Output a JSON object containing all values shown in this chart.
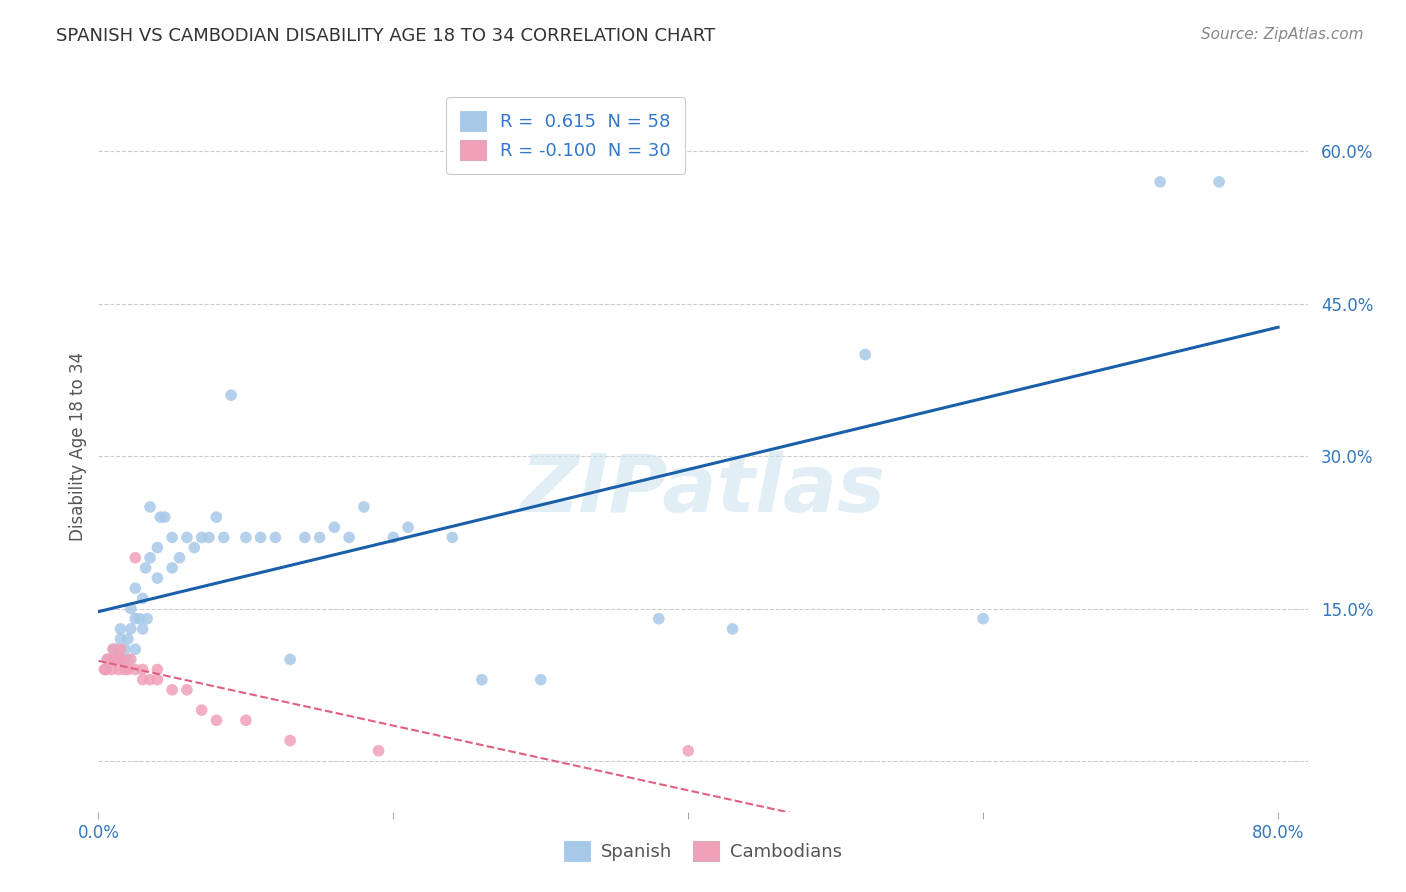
{
  "title": "SPANISH VS CAMBODIAN DISABILITY AGE 18 TO 34 CORRELATION CHART",
  "source": "Source: ZipAtlas.com",
  "ylabel": "Disability Age 18 to 34",
  "xlim": [
    0.0,
    0.82
  ],
  "ylim": [
    -0.05,
    0.67
  ],
  "xtick_positions": [
    0.0,
    0.2,
    0.4,
    0.6,
    0.8
  ],
  "xtick_labels": [
    "0.0%",
    "",
    "",
    "",
    "80.0%"
  ],
  "ytick_values": [
    0.0,
    0.15,
    0.3,
    0.45,
    0.6
  ],
  "ytick_labels": [
    "",
    "15.0%",
    "30.0%",
    "45.0%",
    "60.0%"
  ],
  "grid_color": "#cccccc",
  "background_color": "#ffffff",
  "spanish_color": "#a8c8e8",
  "cambodian_color": "#f0a0b8",
  "spanish_line_color": "#1a5faa",
  "cambodian_line_color": "#e06080",
  "R_spanish": 0.615,
  "N_spanish": 58,
  "R_cambodian": -0.1,
  "N_cambodian": 30,
  "watermark": "ZIPatlas",
  "spanish_x": [
    0.005,
    0.006,
    0.008,
    0.01,
    0.01,
    0.012,
    0.015,
    0.015,
    0.015,
    0.018,
    0.02,
    0.02,
    0.022,
    0.022,
    0.025,
    0.025,
    0.025,
    0.028,
    0.03,
    0.03,
    0.032,
    0.033,
    0.035,
    0.035,
    0.04,
    0.04,
    0.042,
    0.045,
    0.05,
    0.05,
    0.055,
    0.06,
    0.065,
    0.07,
    0.075,
    0.08,
    0.085,
    0.09,
    0.1,
    0.11,
    0.12,
    0.13,
    0.14,
    0.15,
    0.16,
    0.17,
    0.18,
    0.2,
    0.21,
    0.24,
    0.26,
    0.3,
    0.38,
    0.43,
    0.52,
    0.6,
    0.72,
    0.76
  ],
  "spanish_y": [
    0.09,
    0.1,
    0.1,
    0.1,
    0.11,
    0.11,
    0.1,
    0.12,
    0.13,
    0.11,
    0.1,
    0.12,
    0.13,
    0.15,
    0.11,
    0.14,
    0.17,
    0.14,
    0.13,
    0.16,
    0.19,
    0.14,
    0.2,
    0.25,
    0.18,
    0.21,
    0.24,
    0.24,
    0.19,
    0.22,
    0.2,
    0.22,
    0.21,
    0.22,
    0.22,
    0.24,
    0.22,
    0.36,
    0.22,
    0.22,
    0.22,
    0.1,
    0.22,
    0.22,
    0.23,
    0.22,
    0.25,
    0.22,
    0.23,
    0.22,
    0.08,
    0.08,
    0.14,
    0.13,
    0.4,
    0.14,
    0.57,
    0.57
  ],
  "cambodian_x": [
    0.004,
    0.005,
    0.006,
    0.008,
    0.009,
    0.01,
    0.01,
    0.012,
    0.014,
    0.015,
    0.015,
    0.016,
    0.018,
    0.02,
    0.022,
    0.025,
    0.025,
    0.03,
    0.03,
    0.035,
    0.04,
    0.04,
    0.05,
    0.06,
    0.07,
    0.08,
    0.1,
    0.13,
    0.19,
    0.4
  ],
  "cambodian_y": [
    0.09,
    0.09,
    0.1,
    0.1,
    0.09,
    0.1,
    0.11,
    0.1,
    0.09,
    0.1,
    0.11,
    0.1,
    0.09,
    0.09,
    0.1,
    0.09,
    0.2,
    0.08,
    0.09,
    0.08,
    0.08,
    0.09,
    0.07,
    0.07,
    0.05,
    0.04,
    0.04,
    0.02,
    0.01,
    0.01
  ],
  "spanish_line_x": [
    0.0,
    0.8
  ],
  "cambodian_line_x": [
    0.0,
    0.8
  ],
  "legend_R_color": "#000000",
  "legend_val_color": "#1a6fcc",
  "legend_N_color": "#000000"
}
